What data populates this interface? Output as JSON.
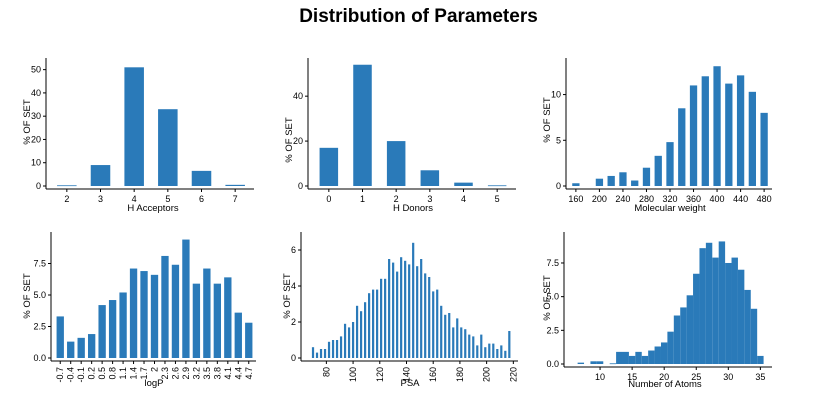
{
  "page": {
    "title": "Distribution of Parameters"
  },
  "chart_data": [
    {
      "type": "bar",
      "xlabel": "H Acceptors",
      "ylabel": "% OF SET",
      "categories": [
        "2",
        "3",
        "4",
        "5",
        "6",
        "7"
      ],
      "values": [
        0.3,
        9,
        51,
        33,
        6.5,
        0.5
      ],
      "ylim": [
        0,
        55
      ],
      "yticks": [
        0,
        10,
        20,
        30,
        40,
        50
      ]
    },
    {
      "type": "bar",
      "xlabel": "H Donors",
      "ylabel": "% OF SET",
      "categories": [
        "0",
        "1",
        "2",
        "3",
        "4",
        "5"
      ],
      "values": [
        17,
        54,
        20,
        7,
        1.5,
        0.3
      ],
      "ylim": [
        0,
        57
      ],
      "yticks": [
        0,
        20,
        40
      ]
    },
    {
      "type": "bar",
      "xlabel": "Molecular weight",
      "ylabel": "% OF SET",
      "categories": [
        "160",
        "180",
        "200",
        "220",
        "240",
        "260",
        "280",
        "300",
        "320",
        "340",
        "360",
        "380",
        "400",
        "420",
        "440",
        "460",
        "480"
      ],
      "x": [
        160,
        180,
        200,
        220,
        240,
        260,
        280,
        300,
        320,
        340,
        360,
        380,
        400,
        420,
        440,
        460,
        480
      ],
      "values": [
        0.3,
        0,
        0.8,
        1.1,
        1.5,
        0.6,
        2,
        3.3,
        4.8,
        8.5,
        11,
        12,
        13.1,
        11.2,
        12.1,
        10.3,
        8
      ],
      "xticks": [
        "160",
        "200",
        "240",
        "280",
        "320",
        "360",
        "400",
        "440",
        "480"
      ],
      "ylim": [
        0,
        14
      ],
      "yticks": [
        0,
        5,
        10
      ]
    },
    {
      "type": "bar",
      "xlabel": "logP",
      "ylabel": "% OF SET",
      "categories": [
        "-0.7",
        "-0.4",
        "-0.1",
        "0.2",
        "0.5",
        "0.8",
        "1.1",
        "1.4",
        "1.7",
        "2",
        "2.3",
        "2.6",
        "2.9",
        "3.2",
        "3.5",
        "3.8",
        "4.1",
        "4.4",
        "4.7"
      ],
      "values": [
        3.3,
        1.3,
        1.6,
        1.9,
        4.2,
        4.6,
        5.2,
        7.1,
        6.9,
        6.6,
        8.1,
        7.4,
        9.4,
        5.9,
        7.1,
        5.9,
        6.4,
        3.6,
        2.8
      ],
      "ylim": [
        0,
        10
      ],
      "yticks": [
        "0.0",
        "2.5",
        "5.0",
        "7.5"
      ]
    },
    {
      "type": "bar",
      "xlabel": "PSA",
      "ylabel": "% OF SET",
      "x": [
        70,
        73,
        76,
        79,
        82,
        85,
        88,
        91,
        94,
        97,
        100,
        103,
        106,
        109,
        112,
        115,
        118,
        121,
        124,
        127,
        130,
        133,
        136,
        139,
        142,
        145,
        148,
        151,
        154,
        157,
        160,
        163,
        166,
        169,
        172,
        175,
        178,
        181,
        184,
        187,
        190,
        193,
        196,
        199,
        202,
        205,
        208,
        211,
        214,
        217
      ],
      "values": [
        0.6,
        0.3,
        0.5,
        0.5,
        0.9,
        1.0,
        1.0,
        1.2,
        1.9,
        1.7,
        2.0,
        2.9,
        2.6,
        3.1,
        3.6,
        3.8,
        3.8,
        4.4,
        4.4,
        5.5,
        5.3,
        4.8,
        5.6,
        5.4,
        5.2,
        6.4,
        5.1,
        5.5,
        4.7,
        4.5,
        3.7,
        3.8,
        2.9,
        2.4,
        2.5,
        1.7,
        2.2,
        1.7,
        1.6,
        1.3,
        1.2,
        0.7,
        1.3,
        0.6,
        0.8,
        0.8,
        0.5,
        0.7,
        0.4,
        1.5
      ],
      "xticks": [
        "80",
        "100",
        "120",
        "140",
        "160",
        "180",
        "200",
        "220"
      ],
      "xlim": [
        64,
        222
      ],
      "ylim": [
        0,
        7
      ],
      "yticks": [
        0,
        2,
        4,
        6
      ]
    },
    {
      "type": "bar",
      "xlabel": "Number of Atoms",
      "ylabel": "% OF SET",
      "x": [
        7,
        9,
        10,
        12,
        13,
        14,
        15,
        16,
        17,
        18,
        19,
        20,
        21,
        22,
        23,
        24,
        25,
        26,
        27,
        28,
        29,
        30,
        31,
        32,
        33,
        34,
        35
      ],
      "values": [
        0.1,
        0.2,
        0.2,
        0.05,
        0.9,
        0.9,
        0.6,
        0.9,
        0.6,
        1.0,
        1.3,
        1.6,
        2.4,
        3.6,
        4.2,
        5.1,
        6.7,
        8.6,
        9.0,
        7.9,
        9.1,
        7.5,
        7.9,
        7.0,
        5.5,
        4.1,
        0.6
      ],
      "xticks": [
        "10",
        "15",
        "20",
        "25",
        "30",
        "35"
      ],
      "xlim": [
        5,
        36.5
      ],
      "ylim": [
        0,
        9.8
      ],
      "yticks": [
        "0.0",
        "2.5",
        "5.0",
        "7.5"
      ]
    }
  ]
}
